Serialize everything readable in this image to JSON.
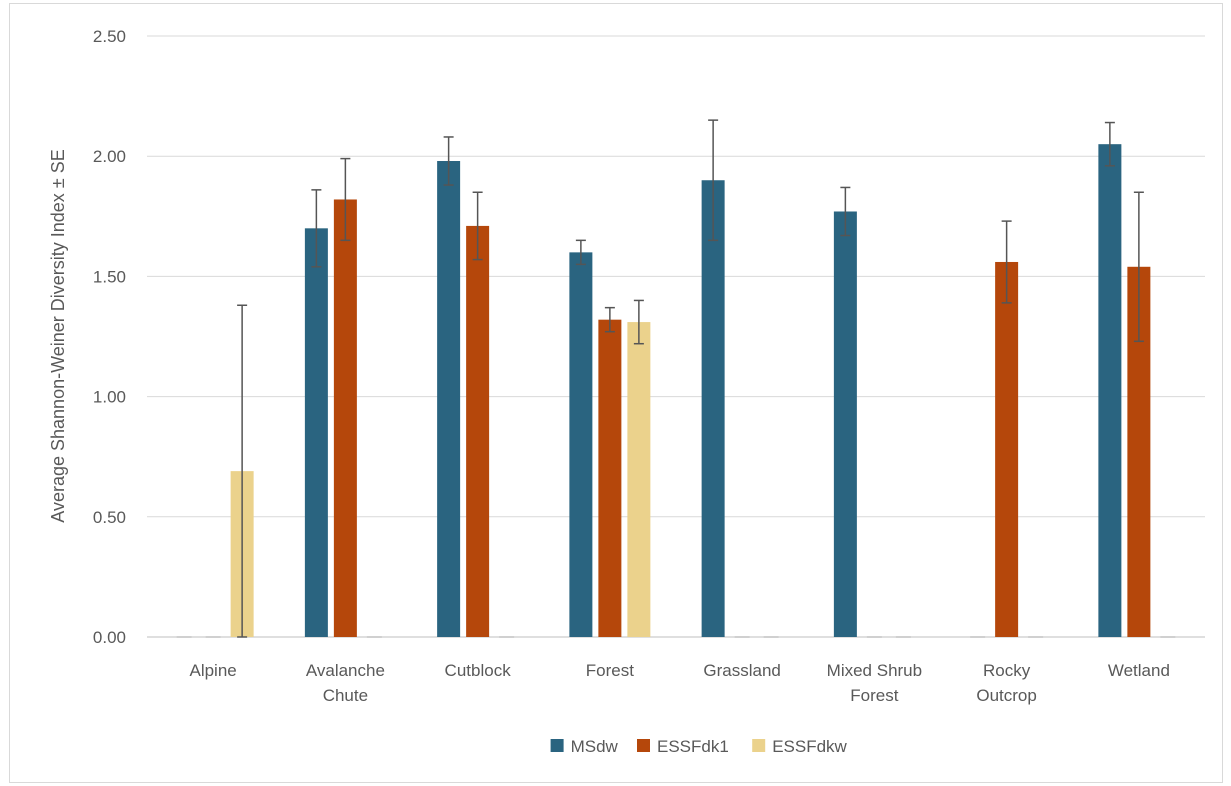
{
  "chart_data": {
    "type": "bar",
    "title": "",
    "xlabel": "",
    "ylabel": "Average Shannon-Weiner Diversity Index ± SE",
    "ylim": [
      0,
      2.5
    ],
    "yticks": [
      "0.00",
      "0.50",
      "1.00",
      "1.50",
      "2.00",
      "2.50"
    ],
    "grid": true,
    "legend_position": "bottom",
    "categories": [
      [
        "Alpine"
      ],
      [
        "Avalanche",
        "Chute"
      ],
      [
        "Cutblock"
      ],
      [
        "Forest"
      ],
      [
        "Grassland"
      ],
      [
        "Mixed Shrub",
        "Forest"
      ],
      [
        "Rocky",
        "Outcrop"
      ],
      [
        "Wetland"
      ]
    ],
    "series": [
      {
        "name": "MSdw",
        "color": "#2a6480",
        "values": [
          0,
          1.7,
          1.98,
          1.6,
          1.9,
          1.77,
          0,
          2.05
        ],
        "errors": [
          0,
          0.16,
          0.1,
          0.05,
          0.25,
          0.1,
          0,
          0.09
        ]
      },
      {
        "name": "ESSFdk1",
        "color": "#b5470b",
        "values": [
          0,
          1.82,
          1.71,
          1.32,
          0,
          0,
          1.56,
          1.54
        ],
        "errors": [
          0,
          0.17,
          0.14,
          0.05,
          0,
          0,
          0.17,
          0.31
        ]
      },
      {
        "name": "ESSFdkw",
        "color": "#ebd28c",
        "values": [
          0.69,
          0,
          0,
          1.31,
          0,
          0,
          0,
          0
        ],
        "errors": [
          0.69,
          0,
          0,
          0.09,
          0,
          0,
          0,
          0
        ]
      }
    ]
  }
}
